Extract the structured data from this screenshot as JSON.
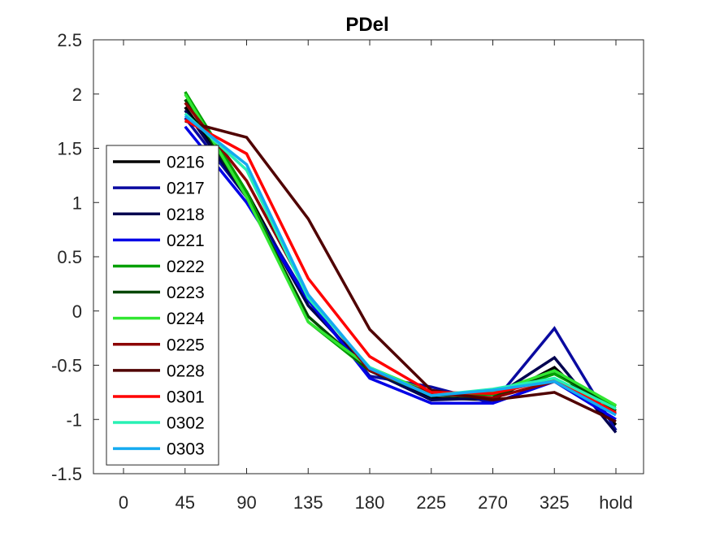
{
  "chart_data": {
    "type": "line",
    "title": "PDel",
    "xlabel": "",
    "ylabel": "",
    "categories": [
      "0",
      "45",
      "90",
      "135",
      "180",
      "225",
      "270",
      "325",
      "hold"
    ],
    "ylim": [
      -1.5,
      2.5
    ],
    "yticks": [
      "2.5",
      "2",
      "1.5",
      "1",
      "0.5",
      "0",
      "-0.5",
      "-1",
      "-1.5"
    ],
    "ytick_values": [
      2.5,
      2,
      1.5,
      1,
      0.5,
      0,
      -0.5,
      -1,
      -1.5
    ],
    "grid": false,
    "legend_position": "left",
    "series": [
      {
        "name": "0216",
        "color": "#000000",
        "values": [
          null,
          1.88,
          1.1,
          0.05,
          -0.55,
          -0.8,
          -0.82,
          -0.52,
          -1.05
        ]
      },
      {
        "name": "0217",
        "color": "#0a0aa0",
        "values": [
          null,
          1.78,
          1.05,
          0.1,
          -0.6,
          -0.7,
          -0.85,
          -0.16,
          -1.1
        ]
      },
      {
        "name": "0218",
        "color": "#000050",
        "values": [
          null,
          1.85,
          1.05,
          0.05,
          -0.55,
          -0.82,
          -0.8,
          -0.43,
          -1.12
        ]
      },
      {
        "name": "0221",
        "color": "#0000e6",
        "values": [
          null,
          1.7,
          1.0,
          0.1,
          -0.62,
          -0.85,
          -0.85,
          -0.65,
          -1.0
        ]
      },
      {
        "name": "0222",
        "color": "#00a000",
        "values": [
          null,
          2.02,
          1.1,
          -0.1,
          -0.55,
          -0.77,
          -0.77,
          -0.58,
          -0.88
        ]
      },
      {
        "name": "0223",
        "color": "#004600",
        "values": [
          null,
          1.95,
          1.05,
          -0.05,
          -0.55,
          -0.77,
          -0.8,
          -0.55,
          -0.92
        ]
      },
      {
        "name": "0224",
        "color": "#32e632",
        "values": [
          null,
          2.0,
          1.05,
          -0.1,
          -0.52,
          -0.76,
          -0.75,
          -0.55,
          -0.87
        ]
      },
      {
        "name": "0225",
        "color": "#8c0000",
        "values": [
          null,
          1.92,
          1.2,
          0.15,
          -0.55,
          -0.76,
          -0.8,
          -0.65,
          -0.95
        ]
      },
      {
        "name": "0228",
        "color": "#500000",
        "values": [
          null,
          1.75,
          1.6,
          0.85,
          -0.17,
          -0.73,
          -0.82,
          -0.75,
          -1.02
        ]
      },
      {
        "name": "0301",
        "color": "#ff0000",
        "values": [
          null,
          1.76,
          1.45,
          0.3,
          -0.42,
          -0.75,
          -0.76,
          -0.63,
          -0.94
        ]
      },
      {
        "name": "0302",
        "color": "#28f0b4",
        "values": [
          null,
          1.82,
          1.3,
          0.12,
          -0.52,
          -0.78,
          -0.72,
          -0.62,
          -0.9
        ]
      },
      {
        "name": "0303",
        "color": "#14aaf0",
        "values": [
          null,
          1.8,
          1.35,
          0.15,
          -0.53,
          -0.78,
          -0.73,
          -0.65,
          -0.96
        ]
      }
    ]
  }
}
